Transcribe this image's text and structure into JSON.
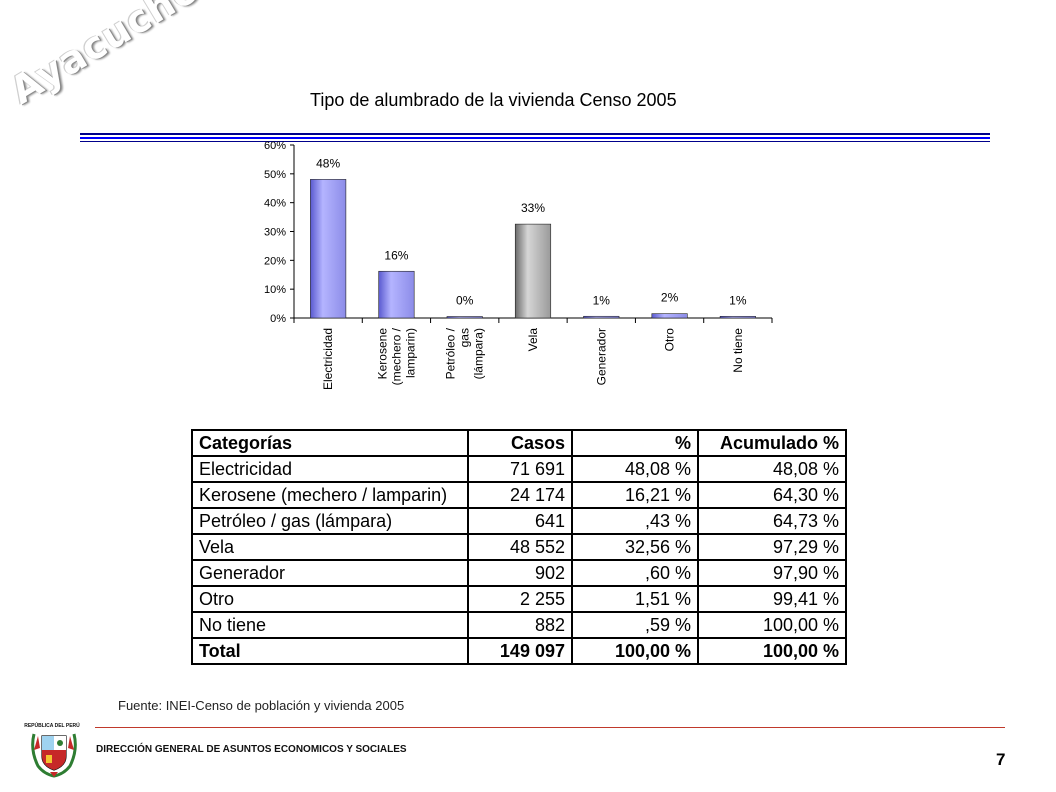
{
  "watermark": "Ayacucho",
  "title": "Tipo de alumbrado de la vivienda Censo 2005",
  "colors": {
    "bar_primary": "#8c8ce8",
    "bar_highlight": "#9a9a9a",
    "rule_dark": "#00008b",
    "rule_blue": "#0000ff",
    "footer_rule": "#c0392b"
  },
  "chart_data": {
    "type": "bar",
    "categories": [
      [
        "Electricidad"
      ],
      [
        "Kerosene",
        "(mechero /",
        "lamparin)"
      ],
      [
        "Petróleo /",
        "gas",
        "(lámpara)"
      ],
      [
        "Vela"
      ],
      [
        "Generador"
      ],
      [
        "Otro"
      ],
      [
        "No tiene"
      ]
    ],
    "values": [
      48.08,
      16.21,
      0.43,
      32.56,
      0.6,
      1.51,
      0.59
    ],
    "data_labels": [
      "48%",
      "16%",
      "0%",
      "33%",
      "1%",
      "2%",
      "1%"
    ],
    "highlight_index": 3,
    "ylim": [
      0,
      60
    ],
    "yticks": [
      0,
      10,
      20,
      30,
      40,
      50,
      60
    ],
    "ytick_labels": [
      "0%",
      "10%",
      "20%",
      "30%",
      "40%",
      "50%",
      "60%"
    ],
    "grid": false,
    "legend": "none"
  },
  "table": {
    "headers": [
      "Categorías",
      "Casos",
      "%",
      "Acumulado %"
    ],
    "rows": [
      [
        "Electricidad",
        "71 691",
        "48,08 %",
        "48,08 %"
      ],
      [
        "Kerosene (mechero / lamparin)",
        "24 174",
        "16,21 %",
        "64,30 %"
      ],
      [
        "Petróleo / gas (lámpara)",
        "641",
        ",43 %",
        "64,73 %"
      ],
      [
        "Vela",
        "48 552",
        "32,56 %",
        "97,29 %"
      ],
      [
        "Generador",
        "902",
        ",60 %",
        "97,90 %"
      ],
      [
        "Otro",
        "2 255",
        "1,51 %",
        "99,41 %"
      ],
      [
        "No tiene",
        "882",
        ",59 %",
        "100,00 %"
      ]
    ],
    "total": [
      "Total",
      "149 097",
      "100,00 %",
      "100,00 %"
    ]
  },
  "source": "Fuente: INEI-Censo de población y vivienda 2005",
  "footer": {
    "agency": "DIRECCIÓN GENERAL DE ASUNTOS ECONOMICOS Y SOCIALES",
    "page_number": "7",
    "crest_label": "REPÚBLICA DEL PERÚ"
  }
}
